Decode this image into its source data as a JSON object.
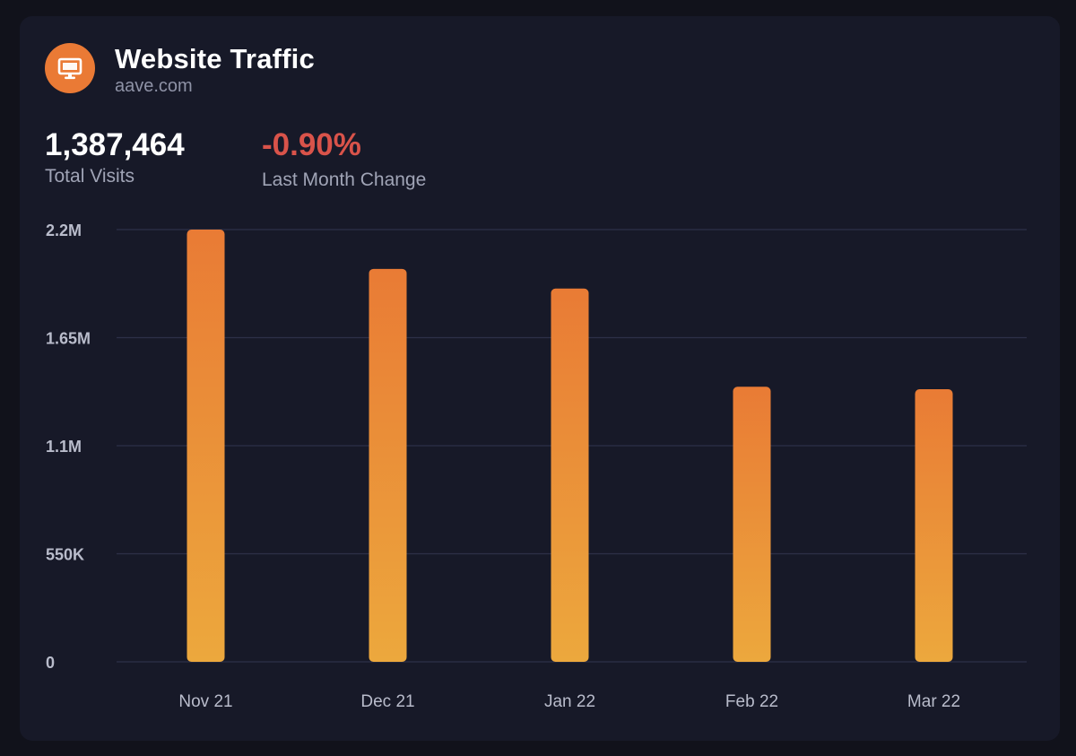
{
  "header": {
    "title": "Website Traffic",
    "subtitle": "aave.com",
    "icon": "monitor-icon",
    "icon_bg": "#ea7a35"
  },
  "stats": {
    "total_visits_value": "1,387,464",
    "total_visits_label": "Total Visits",
    "change_value": "-0.90%",
    "change_label": "Last Month Change",
    "change_color": "#d9534a"
  },
  "chart_data": {
    "type": "bar",
    "categories": [
      "Nov 21",
      "Dec 21",
      "Jan 22",
      "Feb 22",
      "Mar 22"
    ],
    "values": [
      2200000,
      2000000,
      1900000,
      1400000,
      1387464
    ],
    "ylim": [
      0,
      2200000
    ],
    "yticks": [
      0,
      550000,
      1100000,
      1650000,
      2200000
    ],
    "ytick_labels": [
      "0",
      "550K",
      "1.1M",
      "1.65M",
      "2.2M"
    ],
    "grid": true,
    "bar_gradient": [
      "#e97b35",
      "#eca83d"
    ],
    "grid_color": "#2d3048"
  }
}
